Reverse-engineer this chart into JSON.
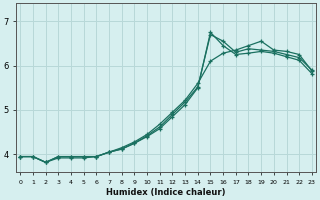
{
  "xlabel": "Humidex (Indice chaleur)",
  "bg_color": "#d6efef",
  "grid_color": "#b8d8d8",
  "line_color": "#1a7060",
  "x_ticks": [
    0,
    1,
    2,
    3,
    4,
    5,
    6,
    7,
    8,
    9,
    10,
    11,
    12,
    13,
    14,
    15,
    16,
    17,
    18,
    19,
    20,
    21,
    22,
    23
  ],
  "y_ticks": [
    4,
    5,
    6,
    7
  ],
  "ylim": [
    3.6,
    7.4
  ],
  "xlim": [
    -0.3,
    23.3
  ],
  "line1_x": [
    0,
    1,
    2,
    3,
    4,
    5,
    6,
    7,
    8,
    9,
    10,
    11,
    12,
    13,
    14,
    15,
    16,
    17,
    18,
    19,
    20,
    21,
    22,
    23
  ],
  "line1_y": [
    3.95,
    3.95,
    3.82,
    3.95,
    3.95,
    3.95,
    3.95,
    4.05,
    4.12,
    4.25,
    4.42,
    4.62,
    4.9,
    5.18,
    5.52,
    6.7,
    6.55,
    6.3,
    6.38,
    6.35,
    6.32,
    6.25,
    6.18,
    5.9
  ],
  "line2_x": [
    0,
    1,
    2,
    3,
    4,
    5,
    6,
    7,
    8,
    9,
    10,
    11,
    12,
    13,
    14,
    15,
    16,
    17,
    18,
    19,
    20,
    21,
    22,
    23
  ],
  "line2_y": [
    3.95,
    3.95,
    3.82,
    3.92,
    3.92,
    3.92,
    3.95,
    4.05,
    4.12,
    4.25,
    4.4,
    4.58,
    4.85,
    5.12,
    5.5,
    6.75,
    6.45,
    6.25,
    6.28,
    6.32,
    6.28,
    6.2,
    6.12,
    5.82
  ],
  "line3_x": [
    0,
    1,
    2,
    3,
    4,
    5,
    6,
    7,
    8,
    9,
    10,
    11,
    12,
    13,
    14,
    15,
    16,
    17,
    18,
    19,
    20,
    21,
    22,
    23
  ],
  "line3_y": [
    3.95,
    3.95,
    3.82,
    3.95,
    3.95,
    3.95,
    3.95,
    4.05,
    4.15,
    4.28,
    4.45,
    4.68,
    4.95,
    5.22,
    5.6,
    6.1,
    6.28,
    6.35,
    6.45,
    6.55,
    6.35,
    6.32,
    6.25,
    5.88
  ]
}
